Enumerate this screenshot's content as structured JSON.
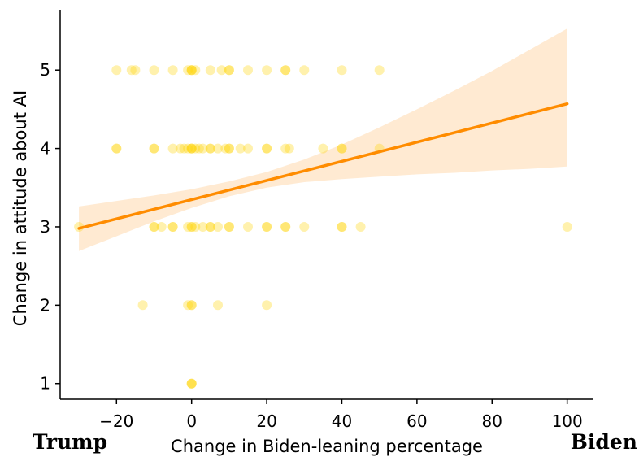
{
  "chart_data": {
    "type": "scatter",
    "title": "",
    "xlabel": "Change in Biden-leaning percentage",
    "ylabel": "Change in attitude about AI",
    "xlim": [
      -35,
      107
    ],
    "ylim": [
      0.8,
      5.77
    ],
    "x_ticks": [
      -20,
      0,
      20,
      40,
      60,
      80,
      100
    ],
    "x_tick_labels": [
      "−20",
      "0",
      "20",
      "40",
      "60",
      "80",
      "100"
    ],
    "y_ticks": [
      1,
      2,
      3,
      4,
      5
    ],
    "y_tick_labels": [
      "1",
      "2",
      "3",
      "4",
      "5"
    ],
    "left_end_label": "Trump",
    "right_end_label": "Biden",
    "grid": false,
    "colors": {
      "points": "#ffd200",
      "line": "#ff8c00",
      "band": "#ffdcb4"
    },
    "points": [
      {
        "x": -20,
        "y": 5
      },
      {
        "x": -16,
        "y": 5
      },
      {
        "x": -15,
        "y": 5
      },
      {
        "x": -10,
        "y": 5
      },
      {
        "x": -5,
        "y": 5
      },
      {
        "x": -1,
        "y": 5
      },
      {
        "x": 0,
        "y": 5
      },
      {
        "x": 0,
        "y": 5
      },
      {
        "x": 0,
        "y": 5
      },
      {
        "x": 1,
        "y": 5
      },
      {
        "x": 5,
        "y": 5
      },
      {
        "x": 8,
        "y": 5
      },
      {
        "x": 10,
        "y": 5
      },
      {
        "x": 10,
        "y": 5
      },
      {
        "x": 15,
        "y": 5
      },
      {
        "x": 20,
        "y": 5
      },
      {
        "x": 25,
        "y": 5
      },
      {
        "x": 25,
        "y": 5
      },
      {
        "x": 30,
        "y": 5
      },
      {
        "x": 40,
        "y": 5
      },
      {
        "x": 50,
        "y": 5
      },
      {
        "x": -20,
        "y": 4
      },
      {
        "x": -20,
        "y": 4
      },
      {
        "x": -10,
        "y": 4
      },
      {
        "x": -10,
        "y": 4
      },
      {
        "x": -5,
        "y": 4
      },
      {
        "x": -3,
        "y": 4
      },
      {
        "x": -2,
        "y": 4
      },
      {
        "x": -1,
        "y": 4
      },
      {
        "x": 0,
        "y": 4
      },
      {
        "x": 0,
        "y": 4
      },
      {
        "x": 0,
        "y": 4
      },
      {
        "x": 1,
        "y": 4
      },
      {
        "x": 2,
        "y": 4
      },
      {
        "x": 3,
        "y": 4
      },
      {
        "x": 5,
        "y": 4
      },
      {
        "x": 5,
        "y": 4
      },
      {
        "x": 7,
        "y": 4
      },
      {
        "x": 9,
        "y": 4
      },
      {
        "x": 10,
        "y": 4
      },
      {
        "x": 10,
        "y": 4
      },
      {
        "x": 13,
        "y": 4
      },
      {
        "x": 15,
        "y": 4
      },
      {
        "x": 20,
        "y": 4
      },
      {
        "x": 20,
        "y": 4
      },
      {
        "x": 25,
        "y": 4
      },
      {
        "x": 26,
        "y": 4
      },
      {
        "x": 35,
        "y": 4
      },
      {
        "x": 40,
        "y": 4
      },
      {
        "x": 40,
        "y": 4
      },
      {
        "x": 50,
        "y": 4
      },
      {
        "x": -30,
        "y": 3
      },
      {
        "x": -10,
        "y": 3
      },
      {
        "x": -10,
        "y": 3
      },
      {
        "x": -8,
        "y": 3
      },
      {
        "x": -5,
        "y": 3
      },
      {
        "x": -5,
        "y": 3
      },
      {
        "x": -1,
        "y": 3
      },
      {
        "x": 0,
        "y": 3
      },
      {
        "x": 0,
        "y": 3
      },
      {
        "x": 1,
        "y": 3
      },
      {
        "x": 3,
        "y": 3
      },
      {
        "x": 5,
        "y": 3
      },
      {
        "x": 5,
        "y": 3
      },
      {
        "x": 7,
        "y": 3
      },
      {
        "x": 10,
        "y": 3
      },
      {
        "x": 10,
        "y": 3
      },
      {
        "x": 15,
        "y": 3
      },
      {
        "x": 20,
        "y": 3
      },
      {
        "x": 20,
        "y": 3
      },
      {
        "x": 25,
        "y": 3
      },
      {
        "x": 25,
        "y": 3
      },
      {
        "x": 30,
        "y": 3
      },
      {
        "x": 40,
        "y": 3
      },
      {
        "x": 40,
        "y": 3
      },
      {
        "x": 45,
        "y": 3
      },
      {
        "x": 100,
        "y": 3
      },
      {
        "x": -13,
        "y": 2
      },
      {
        "x": -1,
        "y": 2
      },
      {
        "x": 0,
        "y": 2
      },
      {
        "x": 0,
        "y": 2
      },
      {
        "x": 7,
        "y": 2
      },
      {
        "x": 20,
        "y": 2
      },
      {
        "x": 0,
        "y": 1
      },
      {
        "x": 0,
        "y": 1
      },
      {
        "x": 0,
        "y": 1
      }
    ],
    "regression": {
      "x": [
        -30,
        100
      ],
      "y": [
        2.98,
        4.57
      ]
    },
    "confidence_band": {
      "x": [
        -30,
        -10,
        0,
        10,
        20,
        30,
        40,
        50,
        60,
        70,
        80,
        90,
        100
      ],
      "lower": [
        2.69,
        3.07,
        3.24,
        3.39,
        3.5,
        3.57,
        3.61,
        3.64,
        3.67,
        3.69,
        3.72,
        3.74,
        3.77
      ],
      "upper": [
        3.26,
        3.4,
        3.48,
        3.58,
        3.7,
        3.86,
        4.05,
        4.27,
        4.5,
        4.74,
        4.99,
        5.26,
        5.53
      ]
    }
  }
}
